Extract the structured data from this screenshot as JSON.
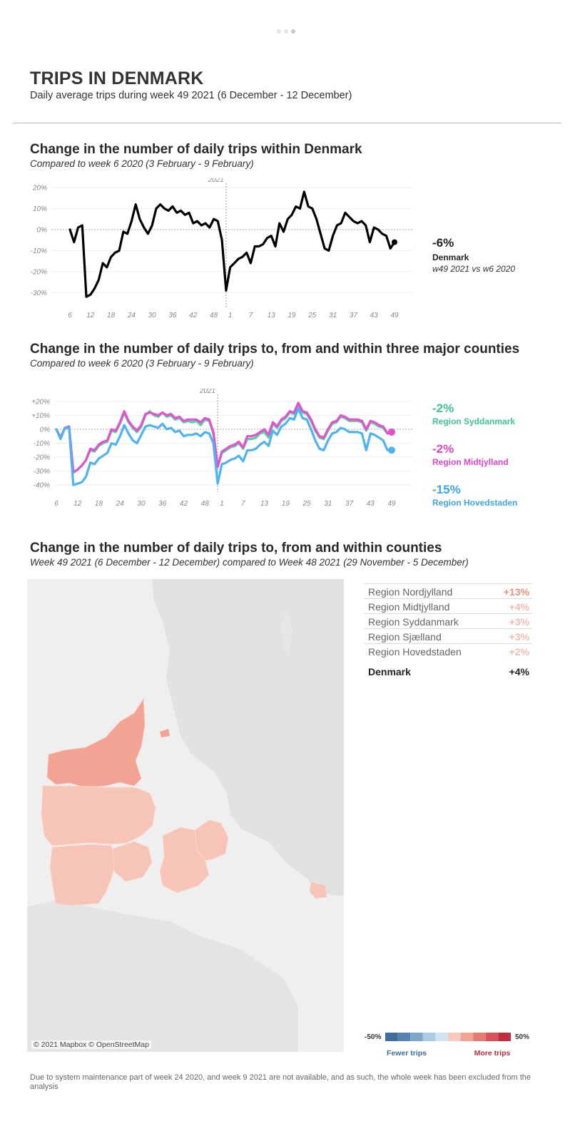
{
  "header": {
    "title": "TRIPS IN DENMARK",
    "subtitle": "Daily average trips during week 49 2021 (6 December - 12 December)"
  },
  "section1": {
    "title": "Change in the number of daily trips within Denmark",
    "subtitle": "Compared to week 6 2020 (3 February - 9 February)",
    "callout": {
      "value": "-6%",
      "label": "Denmark",
      "sub": "w49 2021 vs w6 2020"
    }
  },
  "section2": {
    "title": "Change in the number of daily trips to, from and within three major counties",
    "subtitle": "Compared to week 6 2020 (3 February - 9 February)",
    "callouts": [
      {
        "value": "-2%",
        "label": "Region Syddanmark"
      },
      {
        "value": "-2%",
        "label": "Region Midtjylland"
      },
      {
        "value": "-15%",
        "label": "Region Hovedstaden"
      }
    ]
  },
  "section3": {
    "title": "Change in the number of daily trips to, from and within counties",
    "subtitle": "Week 49 2021 (6 December - 12 December) compared to Week 48 2021 (29 November - 5 December)",
    "map_credit": "© 2021 Mapbox © OpenStreetMap",
    "regions": [
      {
        "name": "Region Nordjylland",
        "value": "+13%",
        "color": "#f0907e"
      },
      {
        "name": "Region Midtjylland",
        "value": "+4%",
        "color": "#f6b9ac"
      },
      {
        "name": "Region Syddanmark",
        "value": "+3%",
        "color": "#f6b9ac"
      },
      {
        "name": "Region Sjælland",
        "value": "+3%",
        "color": "#f6b9ac"
      },
      {
        "name": "Region Hovedstaden",
        "value": "+2%",
        "color": "#f6b9ac"
      }
    ],
    "total": {
      "name": "Denmark",
      "value": "+4%"
    },
    "legend": {
      "min": "-50%",
      "max": "50%",
      "fewer": "Fewer trips",
      "more": "More trips",
      "swatches": [
        "#3f6d9c",
        "#5683b0",
        "#7ea6cc",
        "#a9cbe3",
        "#cfe3f0",
        "#f7c9bf",
        "#f1a494",
        "#e77b6f",
        "#d9535a",
        "#c02c40"
      ]
    },
    "footnote": "Due to system maintenance part of week 24 2020, and week 9 2021 are not available, and as such, the whole week has been excluded from the analysis"
  },
  "chart_data": [
    {
      "type": "line",
      "title": "Change in the number of daily trips within Denmark",
      "x_tick_labels": [
        "6",
        "12",
        "18",
        "24",
        "30",
        "36",
        "42",
        "48",
        "1",
        "7",
        "13",
        "19",
        "25",
        "31",
        "37",
        "43",
        "49"
      ],
      "year_marker": "2021",
      "ylim": [
        -35,
        20
      ],
      "y_ticks": [
        20,
        10,
        0,
        -10,
        -20,
        -30
      ],
      "y_tick_labels": [
        "20%",
        "10%",
        "0%",
        "-10%",
        "-20%",
        "-30%"
      ],
      "grid": true,
      "series": [
        {
          "color": "#000000",
          "values": [
            0,
            -6,
            1,
            2,
            -32,
            -31,
            -28,
            -24,
            -16,
            -18,
            -13,
            -11,
            -10,
            -1,
            -2,
            4,
            12,
            5,
            1,
            -2,
            2,
            10,
            12,
            10,
            9,
            11,
            8,
            9,
            7,
            8,
            3,
            4,
            2,
            3,
            1,
            5,
            4,
            -5,
            -29,
            -18,
            -16,
            -14,
            -13,
            -11,
            -16,
            -8,
            -8,
            -7,
            -4,
            -3,
            -8,
            3,
            -1,
            5,
            7,
            11,
            10,
            18,
            11,
            10,
            5,
            -2,
            -9,
            -10,
            -3,
            2,
            3,
            8,
            6,
            4,
            3,
            4,
            2,
            -6,
            1,
            0,
            -2,
            -3,
            -9,
            -6
          ],
          "end_value": -6
        }
      ]
    },
    {
      "type": "line",
      "title": "Change in the number of daily trips to, from and within three major counties",
      "x_tick_labels": [
        "6",
        "12",
        "18",
        "24",
        "30",
        "36",
        "42",
        "48",
        "1",
        "7",
        "13",
        "19",
        "25",
        "31",
        "37",
        "43",
        "49"
      ],
      "year_marker": "2021",
      "ylim": [
        -42,
        22
      ],
      "y_ticks": [
        20,
        10,
        0,
        -10,
        -20,
        -30,
        -40
      ],
      "y_tick_labels": [
        "+20%",
        "+10%",
        "0%",
        "-10%",
        "-20%",
        "-30%",
        "-40%"
      ],
      "grid": true,
      "series": [
        {
          "name": "Region Syddanmark",
          "color": "#4fd49a",
          "values": [
            0,
            -6,
            1,
            2,
            -31,
            -29,
            -26,
            -22,
            -15,
            -16,
            -12,
            -10,
            -9,
            -1,
            -2,
            4,
            12,
            5,
            1,
            -2,
            2,
            10,
            13,
            10,
            9,
            12,
            9,
            10,
            7,
            8,
            5,
            6,
            5,
            6,
            3,
            7,
            6,
            -3,
            -27,
            -17,
            -15,
            -13,
            -12,
            -10,
            -14,
            -7,
            -7,
            -6,
            -3,
            -2,
            -6,
            4,
            1,
            6,
            8,
            12,
            11,
            18,
            12,
            11,
            6,
            -1,
            -6,
            -7,
            -1,
            4,
            5,
            9,
            8,
            6,
            6,
            6,
            5,
            -1,
            5,
            4,
            2,
            1,
            -3,
            -2
          ],
          "end_value": -2
        },
        {
          "name": "Region Midtjylland",
          "color": "#e84fd0",
          "values": [
            0,
            -6,
            1,
            2,
            -31,
            -29,
            -26,
            -22,
            -14,
            -15,
            -11,
            -9,
            -8,
            0,
            -1,
            5,
            13,
            6,
            2,
            -1,
            3,
            11,
            12,
            11,
            10,
            12,
            10,
            11,
            8,
            9,
            6,
            7,
            7,
            7,
            5,
            8,
            7,
            -2,
            -27,
            -16,
            -14,
            -12,
            -11,
            -9,
            -13,
            -5,
            -5,
            -4,
            -2,
            0,
            -4,
            5,
            2,
            7,
            9,
            13,
            12,
            19,
            13,
            12,
            7,
            0,
            -5,
            -6,
            0,
            5,
            6,
            10,
            9,
            7,
            7,
            7,
            6,
            0,
            6,
            5,
            3,
            2,
            -3,
            -2
          ],
          "end_value": -2
        },
        {
          "name": "Region Hovedstaden",
          "color": "#4db3f2",
          "values": [
            0,
            -7,
            1,
            1,
            -40,
            -39,
            -38,
            -34,
            -24,
            -25,
            -21,
            -19,
            -17,
            -10,
            -11,
            -5,
            3,
            -3,
            -8,
            -10,
            -4,
            2,
            3,
            2,
            1,
            4,
            0,
            1,
            -2,
            -1,
            -5,
            -4,
            -4,
            -3,
            -5,
            -2,
            -3,
            -10,
            -39,
            -25,
            -24,
            -22,
            -21,
            -19,
            -23,
            -15,
            -15,
            -14,
            -11,
            -9,
            -12,
            -1,
            -4,
            2,
            4,
            8,
            7,
            15,
            8,
            7,
            0,
            -8,
            -14,
            -15,
            -8,
            -3,
            -2,
            1,
            0,
            -2,
            -2,
            -2,
            -3,
            -15,
            -3,
            -4,
            -6,
            -8,
            -15,
            -15
          ],
          "end_value": -15
        }
      ]
    }
  ]
}
